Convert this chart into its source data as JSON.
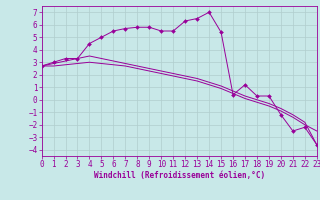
{
  "background_color": "#c8e8e8",
  "grid_color": "#b0cece",
  "line_color": "#990099",
  "spine_color": "#8800aa",
  "xlabel": "Windchill (Refroidissement éolien,°C)",
  "xlim": [
    0,
    23
  ],
  "ylim": [
    -4.5,
    7.5
  ],
  "yticks": [
    -4,
    -3,
    -2,
    -1,
    0,
    1,
    2,
    3,
    4,
    5,
    6,
    7
  ],
  "xticks": [
    0,
    1,
    2,
    3,
    4,
    5,
    6,
    7,
    8,
    9,
    10,
    11,
    12,
    13,
    14,
    15,
    16,
    17,
    18,
    19,
    20,
    21,
    22,
    23
  ],
  "series1_x": [
    0,
    1,
    2,
    3,
    4,
    5,
    6,
    7,
    8,
    9,
    10,
    11,
    12,
    13,
    14,
    15,
    16,
    17,
    18,
    19,
    20,
    21,
    22,
    23
  ],
  "series1_y": [
    2.7,
    3.0,
    3.3,
    3.3,
    4.5,
    5.0,
    5.5,
    5.7,
    5.8,
    5.8,
    5.5,
    5.5,
    6.3,
    6.5,
    7.0,
    5.4,
    0.4,
    1.2,
    0.3,
    0.3,
    -1.2,
    -2.5,
    -2.2,
    -3.6
  ],
  "series2_x": [
    0,
    1,
    2,
    3,
    4,
    5,
    6,
    7,
    8,
    9,
    10,
    11,
    12,
    13,
    14,
    15,
    16,
    17,
    18,
    19,
    20,
    21,
    22,
    23
  ],
  "series2_y": [
    2.7,
    2.9,
    3.1,
    3.3,
    3.5,
    3.3,
    3.1,
    2.9,
    2.7,
    2.5,
    2.3,
    2.1,
    1.9,
    1.7,
    1.4,
    1.1,
    0.7,
    0.3,
    0.0,
    -0.3,
    -0.7,
    -1.2,
    -1.8,
    -3.6
  ],
  "series3_x": [
    0,
    1,
    2,
    3,
    4,
    5,
    6,
    7,
    8,
    9,
    10,
    11,
    12,
    13,
    14,
    15,
    16,
    17,
    18,
    19,
    20,
    21,
    22,
    23
  ],
  "series3_y": [
    2.7,
    2.7,
    2.8,
    2.9,
    3.0,
    2.9,
    2.8,
    2.7,
    2.5,
    2.3,
    2.1,
    1.9,
    1.7,
    1.5,
    1.2,
    0.9,
    0.5,
    0.1,
    -0.2,
    -0.5,
    -0.9,
    -1.4,
    -2.0,
    -2.5
  ],
  "tick_fontsize": 5.5,
  "xlabel_fontsize": 5.5,
  "lw": 0.7,
  "ms": 2.0
}
